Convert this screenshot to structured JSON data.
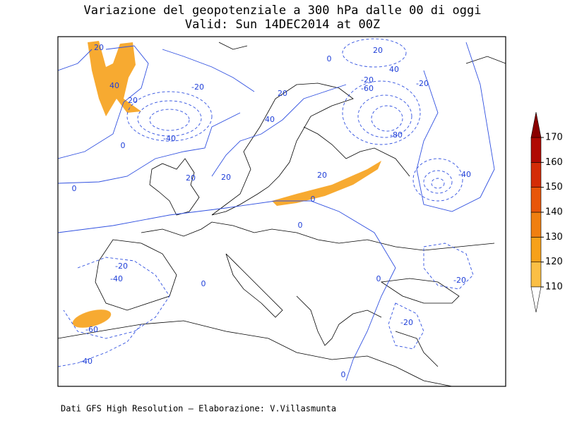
{
  "title": [
    "Variazione del geopotenziale a 300 hPa dalle 00 di oggi",
    "Valid: Sun 14DEC2014 at 00Z"
  ],
  "footer": "Dati GFS High Resolution – Elaborazione: V.Villasmunta",
  "colorbar": {
    "ticks": [
      110,
      120,
      130,
      140,
      150,
      160,
      170
    ],
    "band_colors": [
      "#fbbf45",
      "#f7a11a",
      "#f07f10",
      "#e8560a",
      "#d42c07",
      "#b00a03"
    ],
    "below_color": "#ffffff",
    "above_color": "#8a0000"
  },
  "contour_labels": [
    20,
    40,
    20,
    -20,
    -40,
    0,
    0,
    20,
    20,
    20,
    40,
    20,
    0,
    0,
    20,
    40,
    0,
    -20,
    -60,
    -80,
    -20,
    -40,
    -20,
    -40,
    0,
    0,
    -20,
    -20,
    -60,
    -40,
    0
  ]
}
